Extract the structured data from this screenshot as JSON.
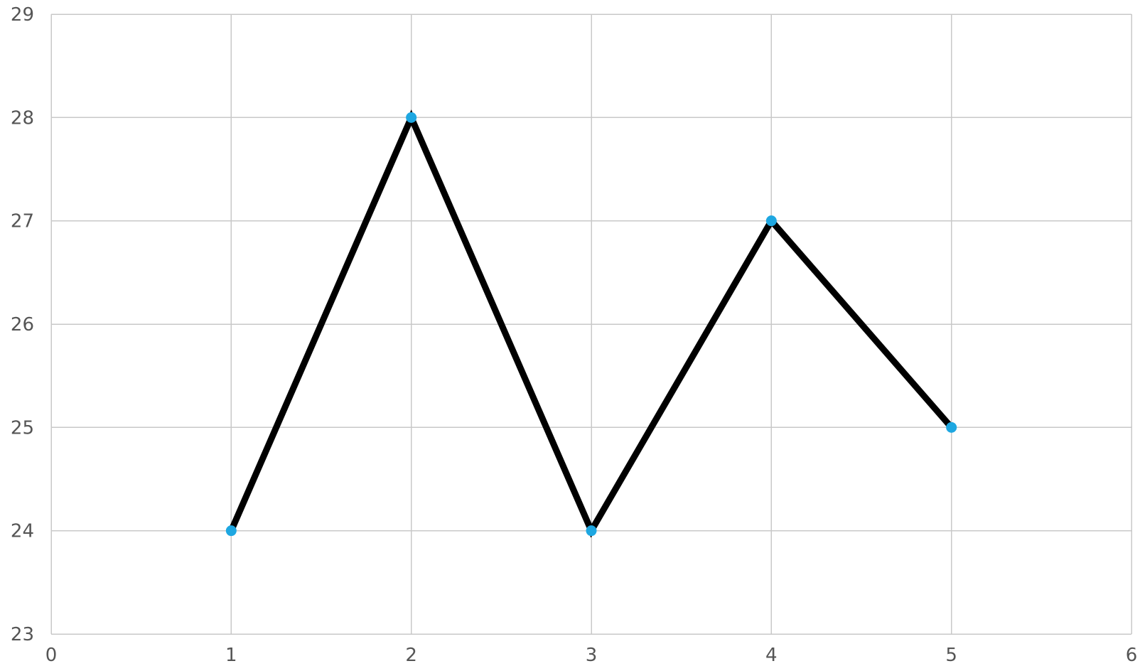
{
  "chart_data": {
    "type": "line",
    "title": "",
    "xlabel": "",
    "ylabel": "",
    "xlim": [
      0,
      6
    ],
    "ylim": [
      23,
      29
    ],
    "x_ticks": [
      "0",
      "1",
      "2",
      "3",
      "4",
      "5",
      "6"
    ],
    "y_ticks": [
      "23",
      "24",
      "25",
      "26",
      "27",
      "28",
      "29"
    ],
    "grid": true,
    "legend": "none",
    "series": [
      {
        "x": [
          1,
          2,
          3,
          4,
          5
        ],
        "values": [
          24,
          28,
          24,
          27,
          25
        ],
        "line_color": "#000000",
        "marker_color": "#1ea7e1"
      }
    ]
  }
}
